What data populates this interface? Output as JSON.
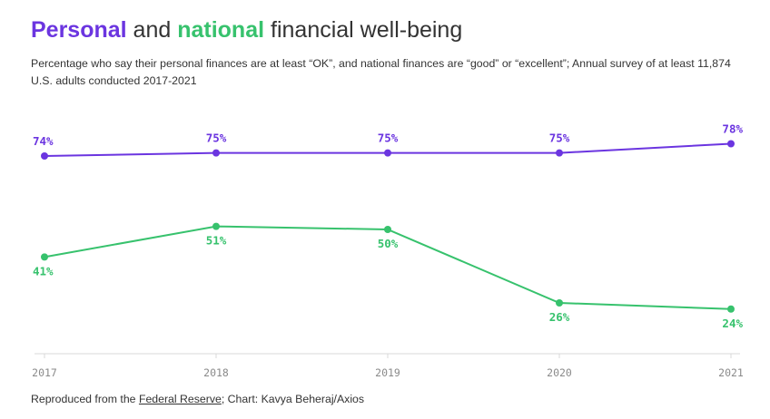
{
  "header": {
    "title_part1": "Personal",
    "title_part2": " and ",
    "title_part3": "national",
    "title_part4": " financial well-being",
    "subtitle": "Percentage who say their personal finances are at least “OK”, and national finances are “good” or “excellent”; Annual survey of at least 11,874 U.S. adults conducted 2017-2021"
  },
  "footer": {
    "prefix": "Reproduced from the ",
    "source": "Federal Reserve",
    "suffix": "; Chart: Kavya Beheraj/Axios"
  },
  "colors": {
    "personal": "#6b35e0",
    "national": "#37c26d",
    "axis": "#d9d9d9",
    "tick_text": "#8a8a8a"
  },
  "chart_data": {
    "type": "line",
    "title": "Personal and national financial well-being",
    "x": [
      "2017",
      "2018",
      "2019",
      "2020",
      "2021"
    ],
    "series": [
      {
        "name": "Personal",
        "values": [
          74,
          75,
          75,
          75,
          78
        ],
        "labels": [
          "74%",
          "75%",
          "75%",
          "75%",
          "78%"
        ],
        "label_position": "above"
      },
      {
        "name": "National",
        "values": [
          41,
          51,
          50,
          26,
          24
        ],
        "labels": [
          "41%",
          "51%",
          "50%",
          "26%",
          "24%"
        ],
        "label_position": "below"
      }
    ],
    "xlabel": "",
    "ylabel": "",
    "ylim": [
      10,
      90
    ],
    "grid": false,
    "legend": "none"
  }
}
